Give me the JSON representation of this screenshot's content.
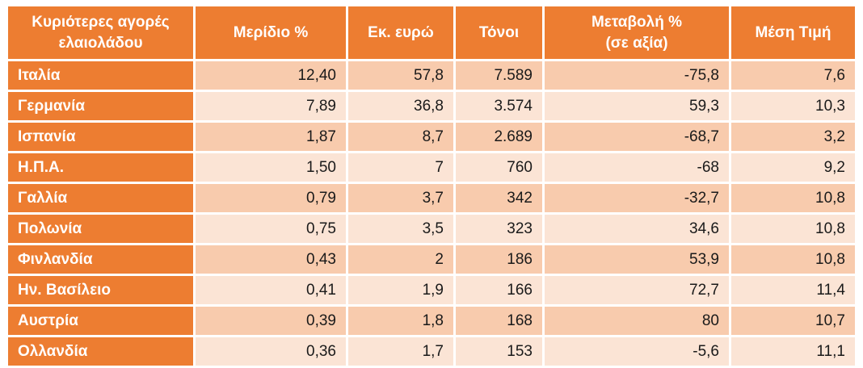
{
  "table": {
    "headers": [
      [
        "Κυριότερες αγορές",
        "ελαιολάδου"
      ],
      [
        "Μερίδιο %"
      ],
      [
        "Εκ. ευρώ"
      ],
      [
        "Τόνοι"
      ],
      [
        "Μεταβολή %",
        "(σε αξία)"
      ],
      [
        "Μέση Τιμή"
      ]
    ],
    "rows": [
      [
        "Ιταλία",
        "12,40",
        "57,8",
        "7.589",
        "-75,8",
        "7,6"
      ],
      [
        "Γερμανία",
        "7,89",
        "36,8",
        "3.574",
        "59,3",
        "10,3"
      ],
      [
        "Ισπανία",
        "1,87",
        "8,7",
        "2.689",
        "-68,7",
        "3,2"
      ],
      [
        "Η.Π.Α.",
        "1,50",
        "7",
        "760",
        "-68",
        "9,2"
      ],
      [
        "Γαλλία",
        "0,79",
        "3,7",
        "342",
        "-32,7",
        "10,8"
      ],
      [
        "Πολωνία",
        "0,75",
        "3,5",
        "323",
        "34,6",
        "10,8"
      ],
      [
        "Φινλανδία",
        "0,43",
        "2",
        "186",
        "53,9",
        "10,8"
      ],
      [
        "Ην. Βασίλειο",
        "0,41",
        "1,9",
        "166",
        "72,7",
        "11,4"
      ],
      [
        "Αυστρία",
        "0,39",
        "1,8",
        "168",
        "80",
        "10,7"
      ],
      [
        "Ολλανδία",
        "0,36",
        "1,7",
        "153",
        "-5,6",
        "11,1"
      ]
    ]
  }
}
